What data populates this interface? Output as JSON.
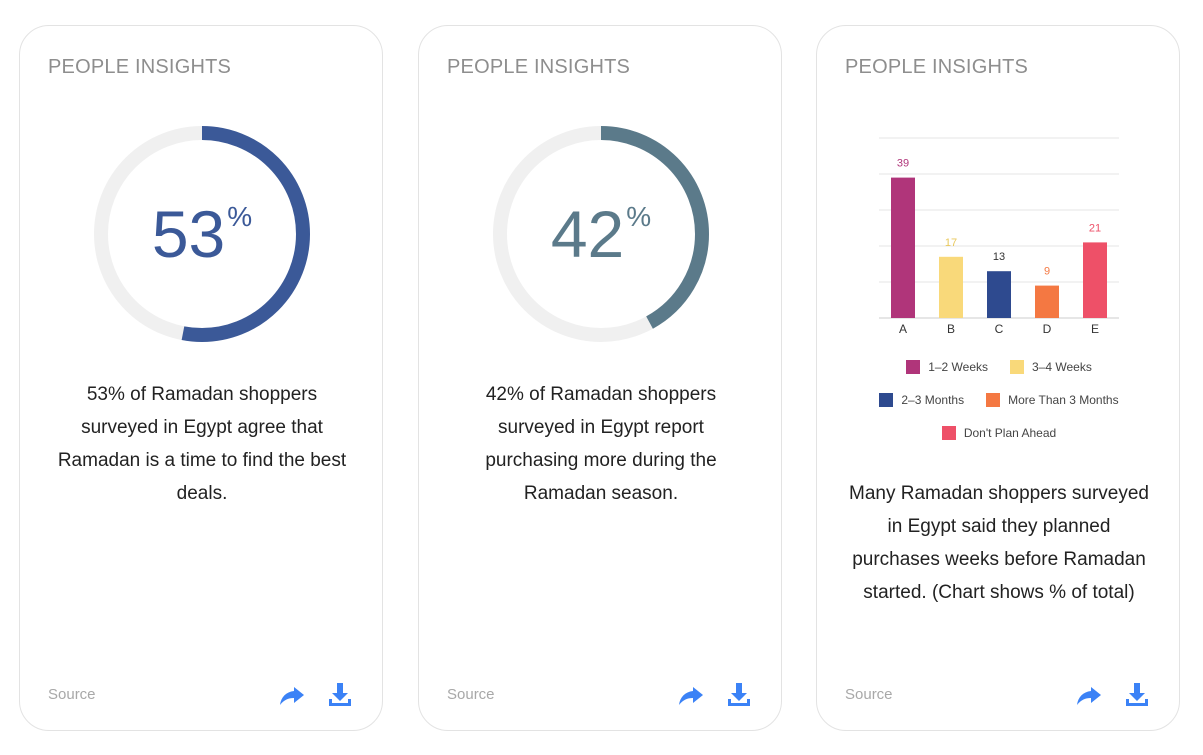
{
  "cards": [
    {
      "title": "PEOPLE INSIGHTS",
      "percent_number": "53",
      "percent_sign": "%",
      "percent_value": 53,
      "ring_color": "#3b5998",
      "text_color": "#3b5998",
      "description": "53% of Ramadan shoppers surveyed in Egypt agree that Ramadan is a time to find the best deals.",
      "source_label": "Source"
    },
    {
      "title": "PEOPLE INSIGHTS",
      "percent_number": "42",
      "percent_sign": "%",
      "percent_value": 42,
      "ring_color": "#5b7a8a",
      "text_color": "#5b7a8a",
      "description": "42% of Ramadan shoppers surveyed in Egypt report purchasing more during the Ramadan season.",
      "source_label": "Source"
    },
    {
      "title": "PEOPLE INSIGHTS",
      "description": "Many Ramadan shoppers surveyed in Egypt said they planned purchases weeks before Ramadan started. (Chart shows % of total)",
      "source_label": "Source"
    }
  ],
  "icons": {
    "share": "share-icon",
    "download": "download-icon",
    "accent": "#3b82f6"
  },
  "chart_data": {
    "type": "bar",
    "categories": [
      "A",
      "B",
      "C",
      "D",
      "E"
    ],
    "values": [
      39,
      17,
      13,
      9,
      21
    ],
    "data_labels": [
      "39",
      "17",
      "13",
      "9",
      "21"
    ],
    "colors": [
      "#b0357a",
      "#f9d97a",
      "#2e4a8f",
      "#f47842",
      "#ee5068"
    ],
    "label_colors": [
      "#b0357a",
      "#e8c75a",
      "#333333",
      "#f47842",
      "#ee5068"
    ],
    "ylim": [
      0,
      50
    ],
    "grid": true,
    "legend_position": "bottom",
    "legend": [
      {
        "label": "1–2 Weeks",
        "color": "#b0357a"
      },
      {
        "label": "3–4 Weeks",
        "color": "#f9d97a"
      },
      {
        "label": "2–3 Months",
        "color": "#2e4a8f"
      },
      {
        "label": "More Than 3 Months",
        "color": "#f47842"
      },
      {
        "label": "Don't Plan Ahead",
        "color": "#ee5068"
      }
    ]
  }
}
